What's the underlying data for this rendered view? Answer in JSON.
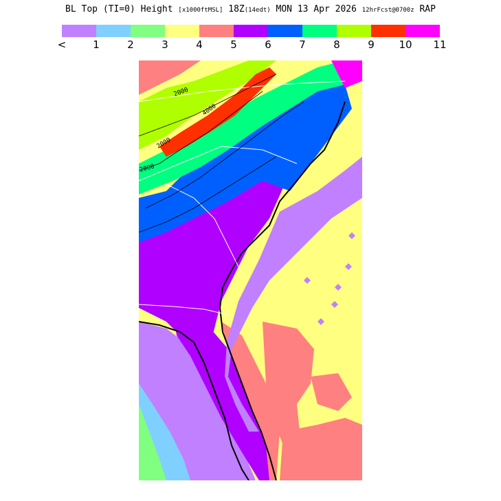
{
  "title": {
    "main_a": "BL Top (TI=0) Height",
    "units": "[x1000ftMSL]",
    "main_b": "18Z",
    "local": "(14edt)",
    "main_c": "MON 13 Apr 2026",
    "forecast": "12hrFcst@0700z",
    "model": "RAP"
  },
  "legend": {
    "colors": [
      "#c080ff",
      "#80d0ff",
      "#80ff80",
      "#ffff80",
      "#ff8080",
      "#b000ff",
      "#0060ff",
      "#00ff80",
      "#b0ff00",
      "#ff3000",
      "#ff00ff"
    ],
    "ticks": [
      "<",
      "1",
      "2",
      "3",
      "4",
      "5",
      "6",
      "7",
      "8",
      "9",
      "10",
      "11"
    ]
  },
  "map": {
    "contour_labels": [
      "2000",
      "2000",
      "2000",
      "4000"
    ]
  }
}
